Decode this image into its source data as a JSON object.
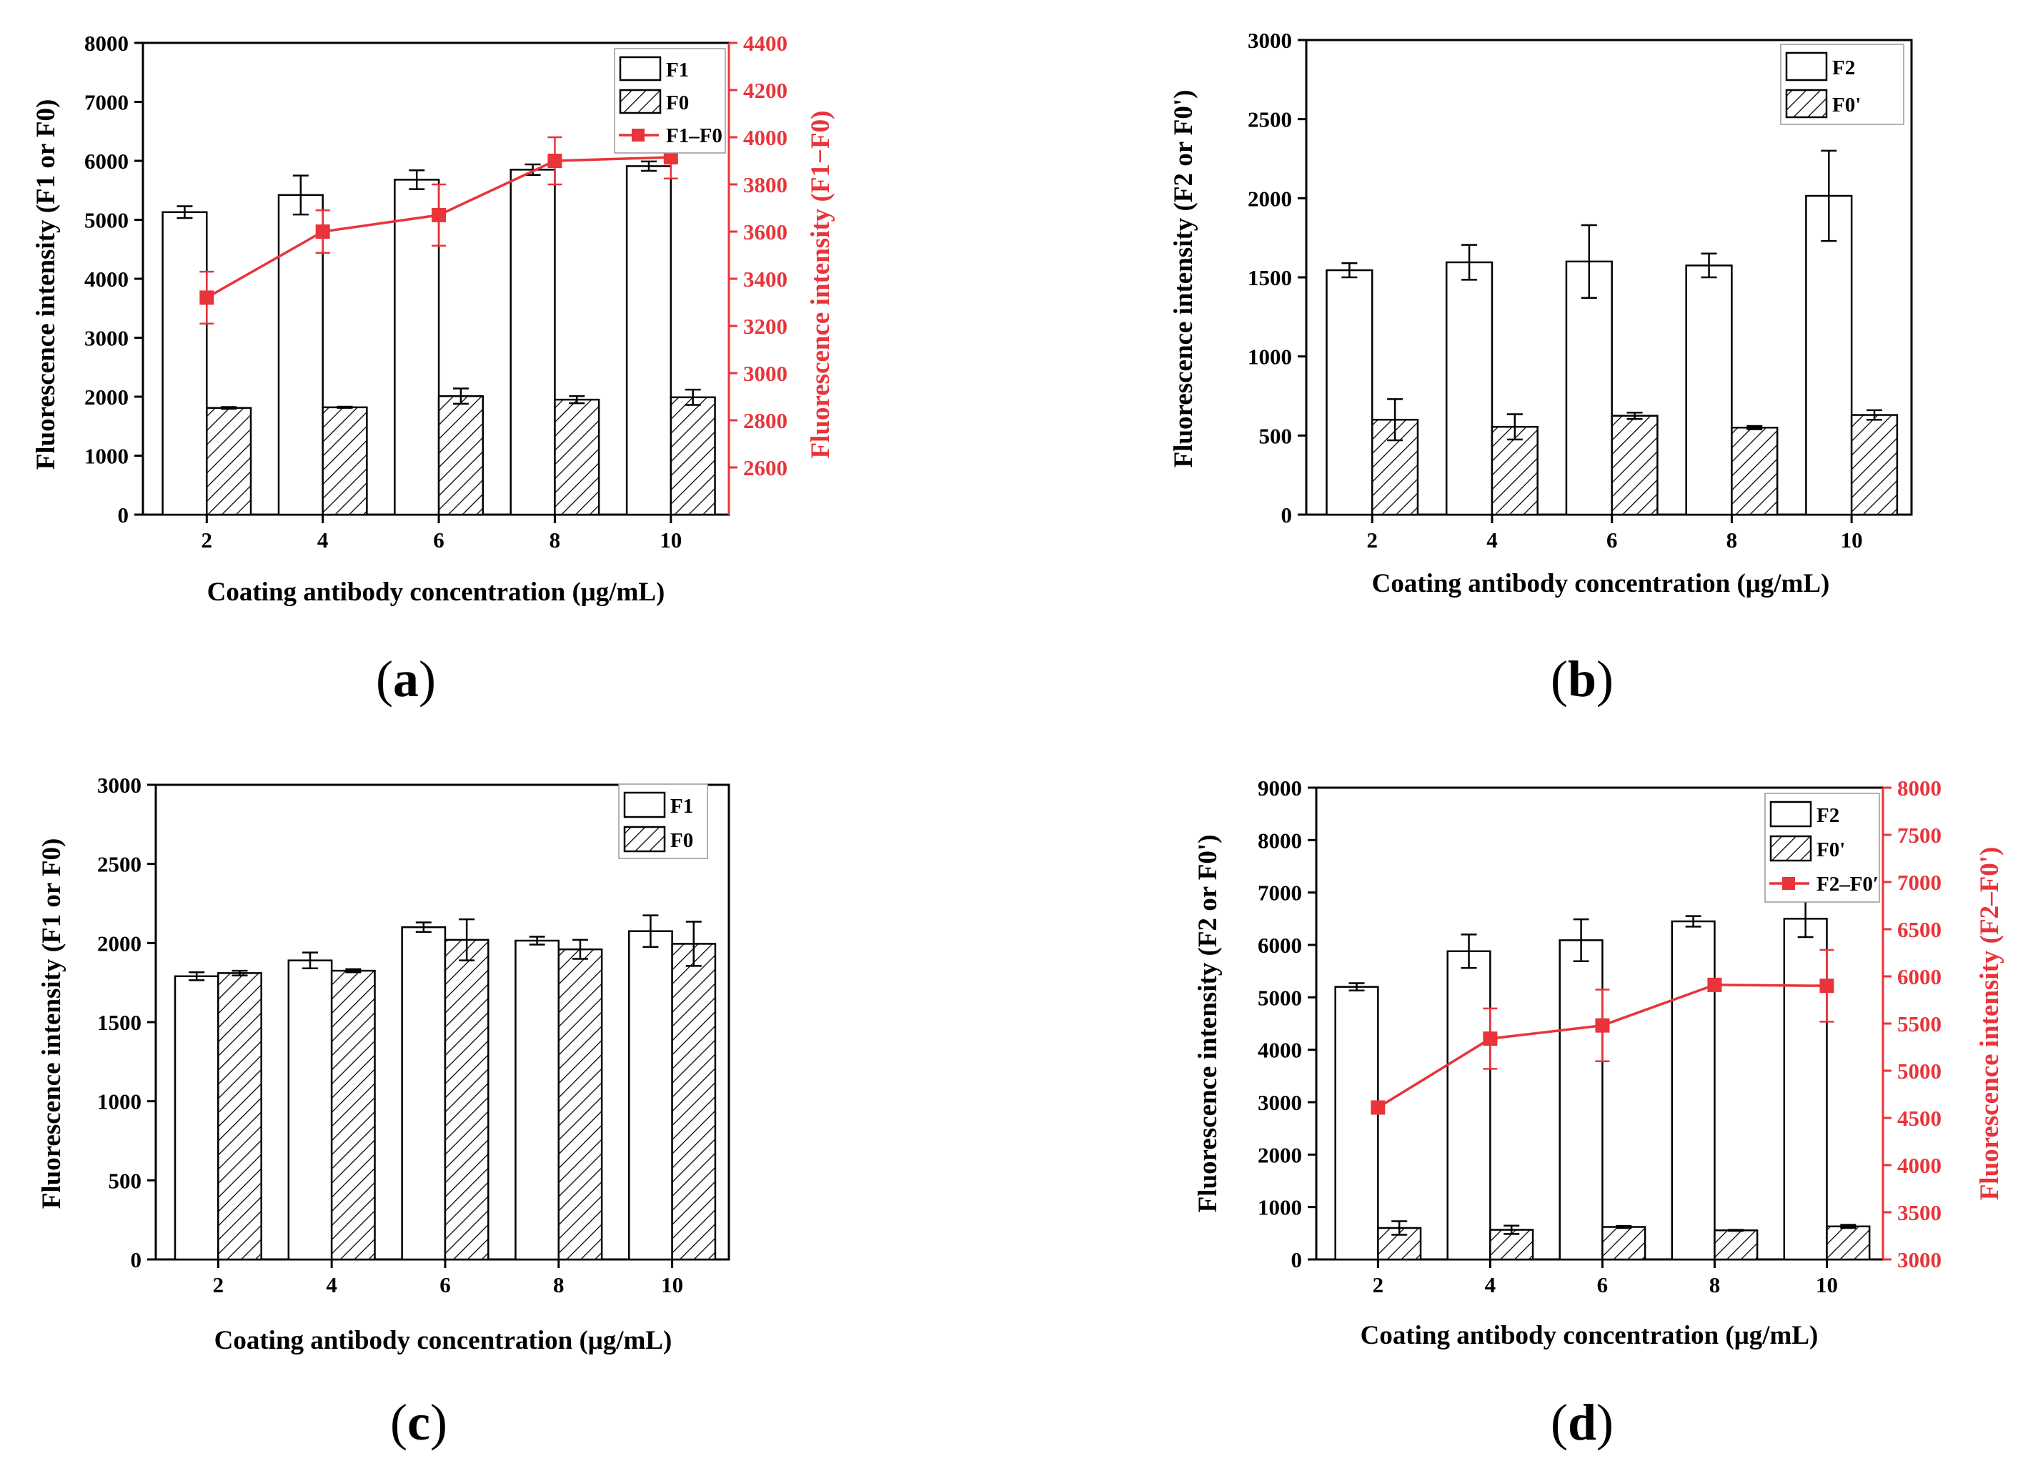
{
  "colors": {
    "line_red": "#e8343a",
    "bar_fill": "#ffffff",
    "ink": "#000000"
  },
  "chart_data": [
    {
      "panel": "a",
      "type": "bar",
      "xlabel": "Coating antibody concentration (μg/mL)",
      "ylabel": "Fluorescence intensity (F1 or F0)",
      "y2label": "Fluorescence intensity (F1−F0)",
      "categories": [
        "2",
        "4",
        "6",
        "8",
        "10"
      ],
      "ylim": [
        0,
        8000
      ],
      "yticks": [
        "0",
        "1000",
        "2000",
        "3000",
        "4000",
        "5000",
        "6000",
        "7000",
        "8000"
      ],
      "y2lim": [
        2400,
        4400
      ],
      "y2ticks": [
        "2600",
        "2800",
        "3000",
        "3200",
        "3400",
        "3600",
        "3800",
        "4000",
        "4200",
        "4400"
      ],
      "series": [
        {
          "name": "F1",
          "kind": "bar-open",
          "values": [
            5130,
            5420,
            5680,
            5850,
            5910
          ],
          "errors": [
            100,
            330,
            160,
            90,
            80
          ]
        },
        {
          "name": "F0",
          "kind": "bar-hatched",
          "values": [
            1810,
            1820,
            2010,
            1950,
            1990
          ],
          "errors": [
            15,
            10,
            130,
            60,
            130
          ]
        },
        {
          "name": "F1–F0",
          "kind": "line",
          "axis": "right",
          "values": [
            3320,
            3600,
            3670,
            3900,
            3915
          ],
          "errors": [
            110,
            90,
            130,
            100,
            90
          ]
        }
      ]
    },
    {
      "panel": "b",
      "type": "bar",
      "xlabel": "Coating antibody concentration (μg/mL)",
      "ylabel": "Fluorescence intensity (F2 or F0')",
      "categories": [
        "2",
        "4",
        "6",
        "8",
        "10"
      ],
      "ylim": [
        0,
        3000
      ],
      "yticks": [
        "0",
        "500",
        "1000",
        "1500",
        "2000",
        "2500",
        "3000"
      ],
      "series": [
        {
          "name": "F2",
          "kind": "bar-open",
          "values": [
            1545,
            1595,
            1600,
            1575,
            2015
          ],
          "errors": [
            45,
            110,
            230,
            75,
            285
          ]
        },
        {
          "name": "F0'",
          "kind": "bar-hatched",
          "values": [
            600,
            555,
            625,
            550,
            630
          ],
          "errors": [
            130,
            80,
            20,
            10,
            30
          ]
        }
      ]
    },
    {
      "panel": "c",
      "type": "bar",
      "xlabel": "Coating antibody concentration (μg/mL)",
      "ylabel": "Fluorescence intensity (F1 or F0)",
      "categories": [
        "2",
        "4",
        "6",
        "8",
        "10"
      ],
      "ylim": [
        0,
        3000
      ],
      "yticks": [
        "0",
        "500",
        "1000",
        "1500",
        "2000",
        "2500",
        "3000"
      ],
      "series": [
        {
          "name": "F1",
          "kind": "bar-open",
          "values": [
            1790,
            1890,
            2100,
            2015,
            2075
          ],
          "errors": [
            25,
            50,
            30,
            25,
            100
          ]
        },
        {
          "name": "F0",
          "kind": "bar-hatched",
          "values": [
            1810,
            1825,
            2020,
            1960,
            1995
          ],
          "errors": [
            15,
            10,
            130,
            60,
            140
          ]
        }
      ]
    },
    {
      "panel": "d",
      "type": "bar",
      "xlabel": "Coating antibody concentration (μg/mL)",
      "ylabel": "Fluorescence intensity (F2 or F0')",
      "y2label": "Fluorescence intensity (F2–F0')",
      "categories": [
        "2",
        "4",
        "6",
        "8",
        "10"
      ],
      "ylim": [
        0,
        9000
      ],
      "yticks": [
        "0",
        "1000",
        "2000",
        "3000",
        "4000",
        "5000",
        "6000",
        "7000",
        "8000",
        "9000"
      ],
      "y2lim": [
        3000,
        8000
      ],
      "y2ticks": [
        "3000",
        "3500",
        "4000",
        "4500",
        "5000",
        "5500",
        "6000",
        "6500",
        "7000",
        "7500",
        "8000"
      ],
      "series": [
        {
          "name": "F2",
          "kind": "bar-open",
          "values": [
            5200,
            5880,
            6090,
            6450,
            6500
          ],
          "errors": [
            70,
            320,
            400,
            100,
            350
          ]
        },
        {
          "name": "F0'",
          "kind": "bar-hatched",
          "values": [
            600,
            565,
            620,
            555,
            630
          ],
          "errors": [
            130,
            80,
            20,
            10,
            30
          ]
        },
        {
          "name": "F2–F0′",
          "kind": "line",
          "axis": "right",
          "values": [
            4610,
            5340,
            5480,
            5910,
            5900
          ],
          "errors": [
            0,
            320,
            380,
            60,
            380
          ]
        }
      ]
    }
  ],
  "panel_labels": [
    {
      "open": "(",
      "letter": "a",
      "close": ")"
    },
    {
      "open": "(",
      "letter": "b",
      "close": ")"
    },
    {
      "open": "(",
      "letter": "c",
      "close": ")"
    },
    {
      "open": "(",
      "letter": "d",
      "close": ")"
    }
  ]
}
